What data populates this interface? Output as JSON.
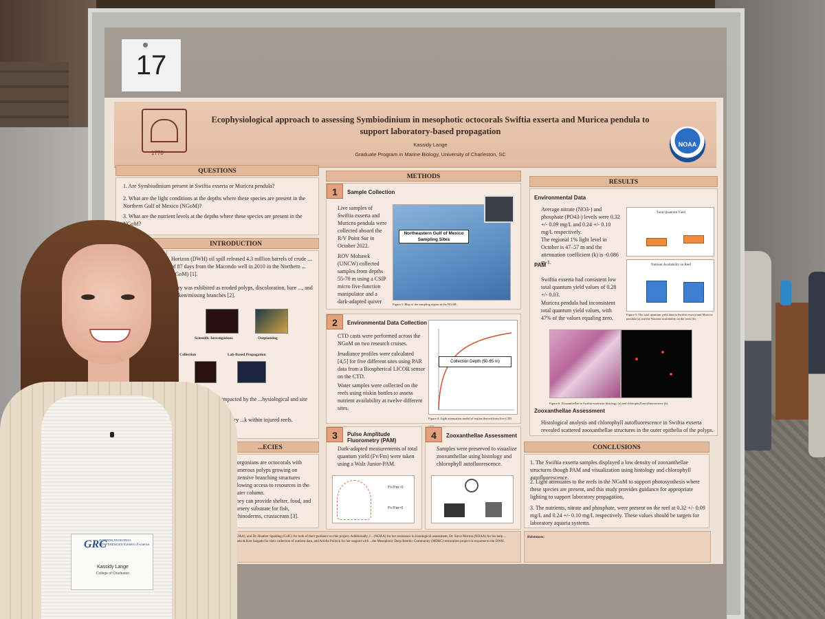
{
  "board_number": "17",
  "poster": {
    "title": "Ecophysiological approach to assessing Symbiodinium in mesophotic octocorals Swiftia exserta and Muricea pendula to support laboratory-based propagation",
    "author": "Kassidy Lange",
    "affiliation": "Graduate Program in Marine Biology, University of Charleston, SC",
    "logo_year": "1770",
    "noaa_logo": "NOAA",
    "sections": {
      "questions": {
        "heading": "QUESTIONS",
        "items": [
          "1. Are Symbiodinium present in Swiftia exserta or Muricea pendula?",
          "2. What are the light conditions at the depths where these species are present in the Northern Gulf of Mexico (NGoM)?",
          "3. What are the nutrient levels at the depths where these species are present in the NGoM?"
        ]
      },
      "introduction": {
        "heading": "INTRODUCTION",
        "text_visible": "Horizon (DWH) oil spill released 4.3 million barrels of crude ... of 87 days from the Macondo well in 2010 in the Northern ... NGoM) [1].",
        "text2": "...ury was exhibited as eroded polyps, discoloration, bare ..., and broken/missing branches [2].",
        "diagram_labels": [
          "Scientific Investigations",
          "Outplanting",
          "...ral Collection",
          "Lab-Based Propagation"
        ],
        "text3": "...hic gorgonian corals impacted by the ...hysiological and site characteristics.",
        "text4": "...ods for successful laboratory ...k within injured reefs."
      },
      "species": {
        "heading": "...ECIES",
        "items": [
          "Gorgonians are octocorals with numerous polyps growing on extensive branching structures allowing access to resources in the water column.",
          "They can provide shelter, food, and nursery substrate for fish, echinoderms, crustaceans [3]."
        ]
      },
      "methods": {
        "heading": "METHODS",
        "steps": [
          {
            "number": "1",
            "title": "Sample Collection",
            "items": [
              "Live samples of Swiftia exserta and Muricea pendula were collected aboard the R/V Point Sur in October 2022.",
              "ROV Mohawk (UNCW) collected samples from depths 55-70 m using a CSIP micro five-function manipulator and a dark-adapted quiver"
            ],
            "map_label": "Northeastern Gulf of Mexico Sampling Sites",
            "caption": "Figure 1: Map of the sampling region in the NGoM."
          },
          {
            "number": "2",
            "title": "Environmental Data Collection",
            "items": [
              "CTD casts were performed across the NGoM on two research cruises.",
              "Irradiance profiles were calculated [4,5] for five different sites using PAR data from a Biospherical LICOR sensor on the CTD.",
              "Water samples were collected on the reefs using niskin bottles to assess nutrient availability at twelve different sites."
            ],
            "graph_label": "Collection Depth (50-65 m)",
            "caption": "Figure 4: Light attenuation model of region derived from five CTD casts."
          },
          {
            "number": "3",
            "title": "Pulse Amplitude Fluorometry (PAM)",
            "items": [
              "Dark-adapted measurements of total quantum yield (Fv/Fm) were taken using a Walz Junior-PAM."
            ],
            "labels": [
              "Fv/Fm>0",
              "Fv/Fm=0"
            ]
          },
          {
            "number": "4",
            "title": "Zooxanthellae Assessment",
            "items": [
              "Samples were preserved to visualize zooxanthellae using histology and chlorophyll autofluorescence."
            ]
          }
        ]
      },
      "results": {
        "heading": "RESULTS",
        "environmental_heading": "Environmental Data",
        "environmental_items": [
          "Average nitrate (NO3-) and phosphate (PO43-) levels were 0.32 +/- 0.09 mg/L and 0.24 +/- 0.10 mg/L respectively.",
          "The regional 1% light level in October is 47–57 m and the attenuation coefficient (k) is -0.086 m-1."
        ],
        "pam_heading": "PAM",
        "pam_items": [
          "Swiftia exserta had consistent low total quantum yield values of 0.28 +/- 0.03.",
          "Muricea pendula had inconsistent total quantum yield values, with 47% of the values equaling zero."
        ],
        "chart_a_title": "Total Quantum Yield",
        "chart_b_title": "Nutrient Availability on Reef",
        "chart_caption": "Figure 5: The total quantum yield data in Swiftia exserta and Muricea pendula (a) and the Nutrient availability on the reefs (b).",
        "zoox_heading": "Zooxanthellae Assessment",
        "zoox_items": [
          "Histological analysis and chlorophyll autofluorescence in Swiftia exserta revealed scattered zooxanthellae structures in the outer epithelia of the polyps."
        ],
        "histo_caption": "Figure 6: Zooxanthellae in Swiftia exserta in histology (a) and chlorophyll autofluorescence (b)."
      },
      "conclusions": {
        "heading": "CONCLUSIONS",
        "items": [
          "1. The Swiftia exserta samples displayed a low density of zooxanthellae structures though PAM and visualization using histology and chlorophyll autofluorescence.",
          "2. Light attenuates to the reefs in the NGoM to support photosynthesis where these species are present, and this study provides guidance for appropriate lighting to support laboratory propagation.",
          "3. The nutrients, nitrate and phosphate, were present on the reef at 0.32 +/- 0.09 mg/L and 0.24 +/- 0.10 mg/L respectively. These values should be targets for laboratory aquaria systems."
        ]
      },
      "acknowledgements": "...(NOAA), and Dr. Heather Spalding (CofC) for both of their guidance on this project. Additionally, I ...(NOAA) for her assistance in histological assessment, Dr. Steve Morton (NOAA) for his help ... Frometa & Ken Salgado for their collection of nutrient data, and Ariella Pollock for her support with ...the Mesophotic Deep Benthic Community (MDBC) restoration project in response to the DWH.",
      "references_heading": "References:"
    }
  },
  "badge": {
    "logo": "GRC",
    "conference": "GORDON RESEARCH CONFERENCES frontiers of science",
    "name": "Kassidy Lange",
    "institution": "College of Charleston"
  }
}
